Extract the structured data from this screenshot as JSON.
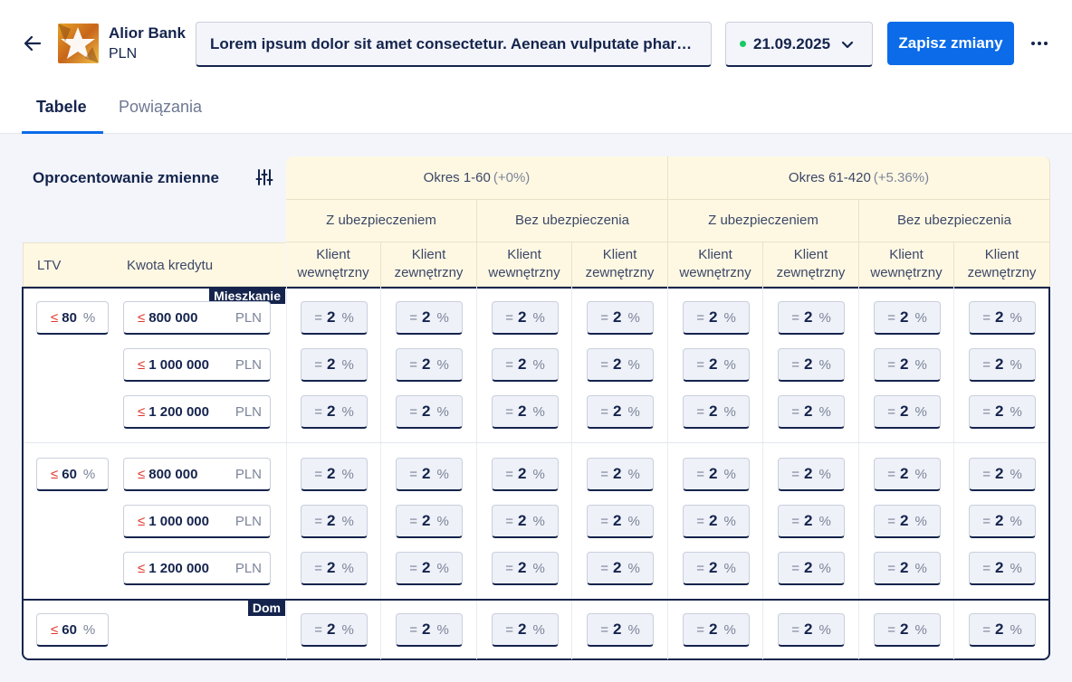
{
  "header": {
    "bank_name": "Alior Bank",
    "currency": "PLN",
    "description": "Lorem ipsum dolor sit amet consectetur. Aenean vulputate pharetra",
    "date": "21.09.2025",
    "date_status_color": "#18c964",
    "save_label": "Zapisz zmiany",
    "icons": {
      "back": "arrow-left-icon",
      "date": "chevron-down-icon",
      "more": "more-horizontal-icon"
    }
  },
  "tabs": [
    {
      "label": "Tabele",
      "active": true
    },
    {
      "label": "Powiązania",
      "active": false
    }
  ],
  "table": {
    "title": "Oprocentowanie zmienne",
    "filter_icon": "sliders-icon",
    "periods": [
      {
        "label": "Okres 1-60",
        "sub": "(+0%)"
      },
      {
        "label": "Okres 61-420",
        "sub": "(+5.36%)"
      }
    ],
    "insurance": [
      "Z ubezpieczeniem",
      "Bez ubezpieczenia",
      "Z ubezpieczeniem",
      "Bez ubezpieczenia"
    ],
    "client": [
      "Klient wewnętrzny",
      "Klient zewnętrzny"
    ],
    "col_ltv": "LTV",
    "col_kwota": "Kwota kredytu",
    "ltv_op": "≤",
    "eq_op": "=",
    "pct": "%",
    "currency_unit": "PLN",
    "sections": [
      {
        "tag": "Mieszkanie",
        "groups": [
          {
            "ltv": "80",
            "amounts": [
              "800 000",
              "1 000 000",
              "1 200 000"
            ]
          },
          {
            "ltv": "60",
            "amounts": [
              "800 000",
              "1 000 000",
              "1 200 000"
            ]
          }
        ]
      },
      {
        "tag": "Dom",
        "groups": [
          {
            "ltv": "60",
            "amounts": [
              null
            ]
          }
        ]
      }
    ],
    "rate_value": "2"
  }
}
